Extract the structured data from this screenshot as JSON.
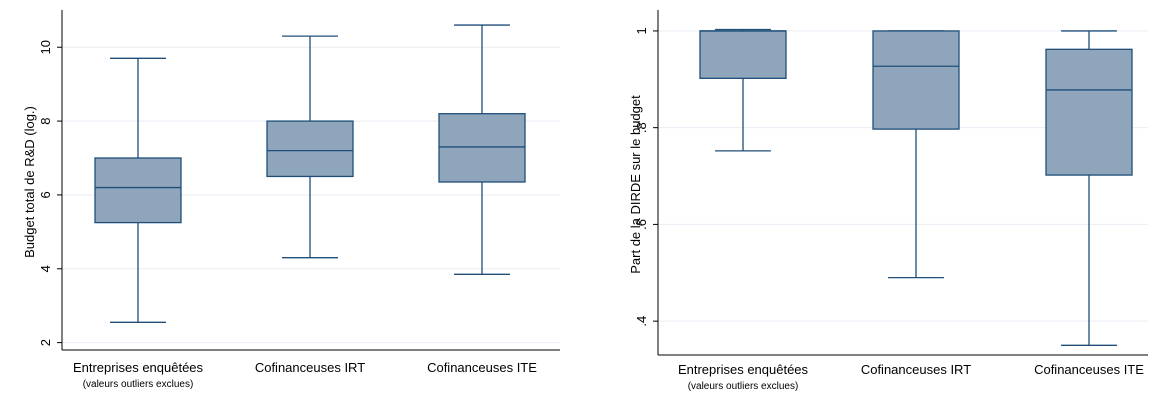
{
  "chart_data": [
    {
      "type": "box",
      "ylabel": "Budget total de R&D (log.)",
      "ylim": [
        1.8,
        10.9
      ],
      "yticks": [
        2,
        4,
        6,
        8,
        10
      ],
      "ytick_labels": [
        "2",
        "4",
        "6",
        "8",
        "10"
      ],
      "categories": [
        {
          "label": "Entreprises enquêtées",
          "sublabel": "(valeurs outliers exclues)"
        },
        {
          "label": "Cofinanceuses IRT",
          "sublabel": ""
        },
        {
          "label": "Cofinanceuses ITE",
          "sublabel": ""
        }
      ],
      "boxes": [
        {
          "min": 2.55,
          "q1": 5.25,
          "median": 6.2,
          "q3": 7.0,
          "max": 9.7
        },
        {
          "min": 4.3,
          "q1": 6.5,
          "median": 7.2,
          "q3": 8.0,
          "max": 10.3
        },
        {
          "min": 3.85,
          "q1": 6.35,
          "median": 7.3,
          "q3": 8.2,
          "max": 10.6
        }
      ],
      "grid": true,
      "colors": {
        "box": "#8ea5bb",
        "line": "#1f4e79",
        "grid": "#e8eef4"
      }
    },
    {
      "type": "box",
      "ylabel": "Part de la DIRDE sur le budget",
      "ylim": [
        0.33,
        1.035
      ],
      "yticks": [
        0.4,
        0.6,
        0.8,
        1.0
      ],
      "ytick_labels": [
        ".4",
        ".6",
        ".8",
        "1"
      ],
      "categories": [
        {
          "label": "Entreprises enquêtées",
          "sublabel": "(valeurs outliers exclues)"
        },
        {
          "label": "Cofinanceuses IRT",
          "sublabel": ""
        },
        {
          "label": "Cofinanceuses ITE",
          "sublabel": ""
        }
      ],
      "boxes": [
        {
          "min": 0.752,
          "q1": 0.902,
          "median": 1.0,
          "q3": 1.0,
          "max": 1.003
        },
        {
          "min": 0.49,
          "q1": 0.797,
          "median": 0.927,
          "q3": 1.0,
          "max": 1.0
        },
        {
          "min": 0.35,
          "q1": 0.702,
          "median": 0.878,
          "q3": 0.962,
          "max": 1.0
        }
      ],
      "grid": true,
      "colors": {
        "box": "#8ea5bb",
        "line": "#1f4e79",
        "grid": "#e8eef4"
      }
    }
  ]
}
